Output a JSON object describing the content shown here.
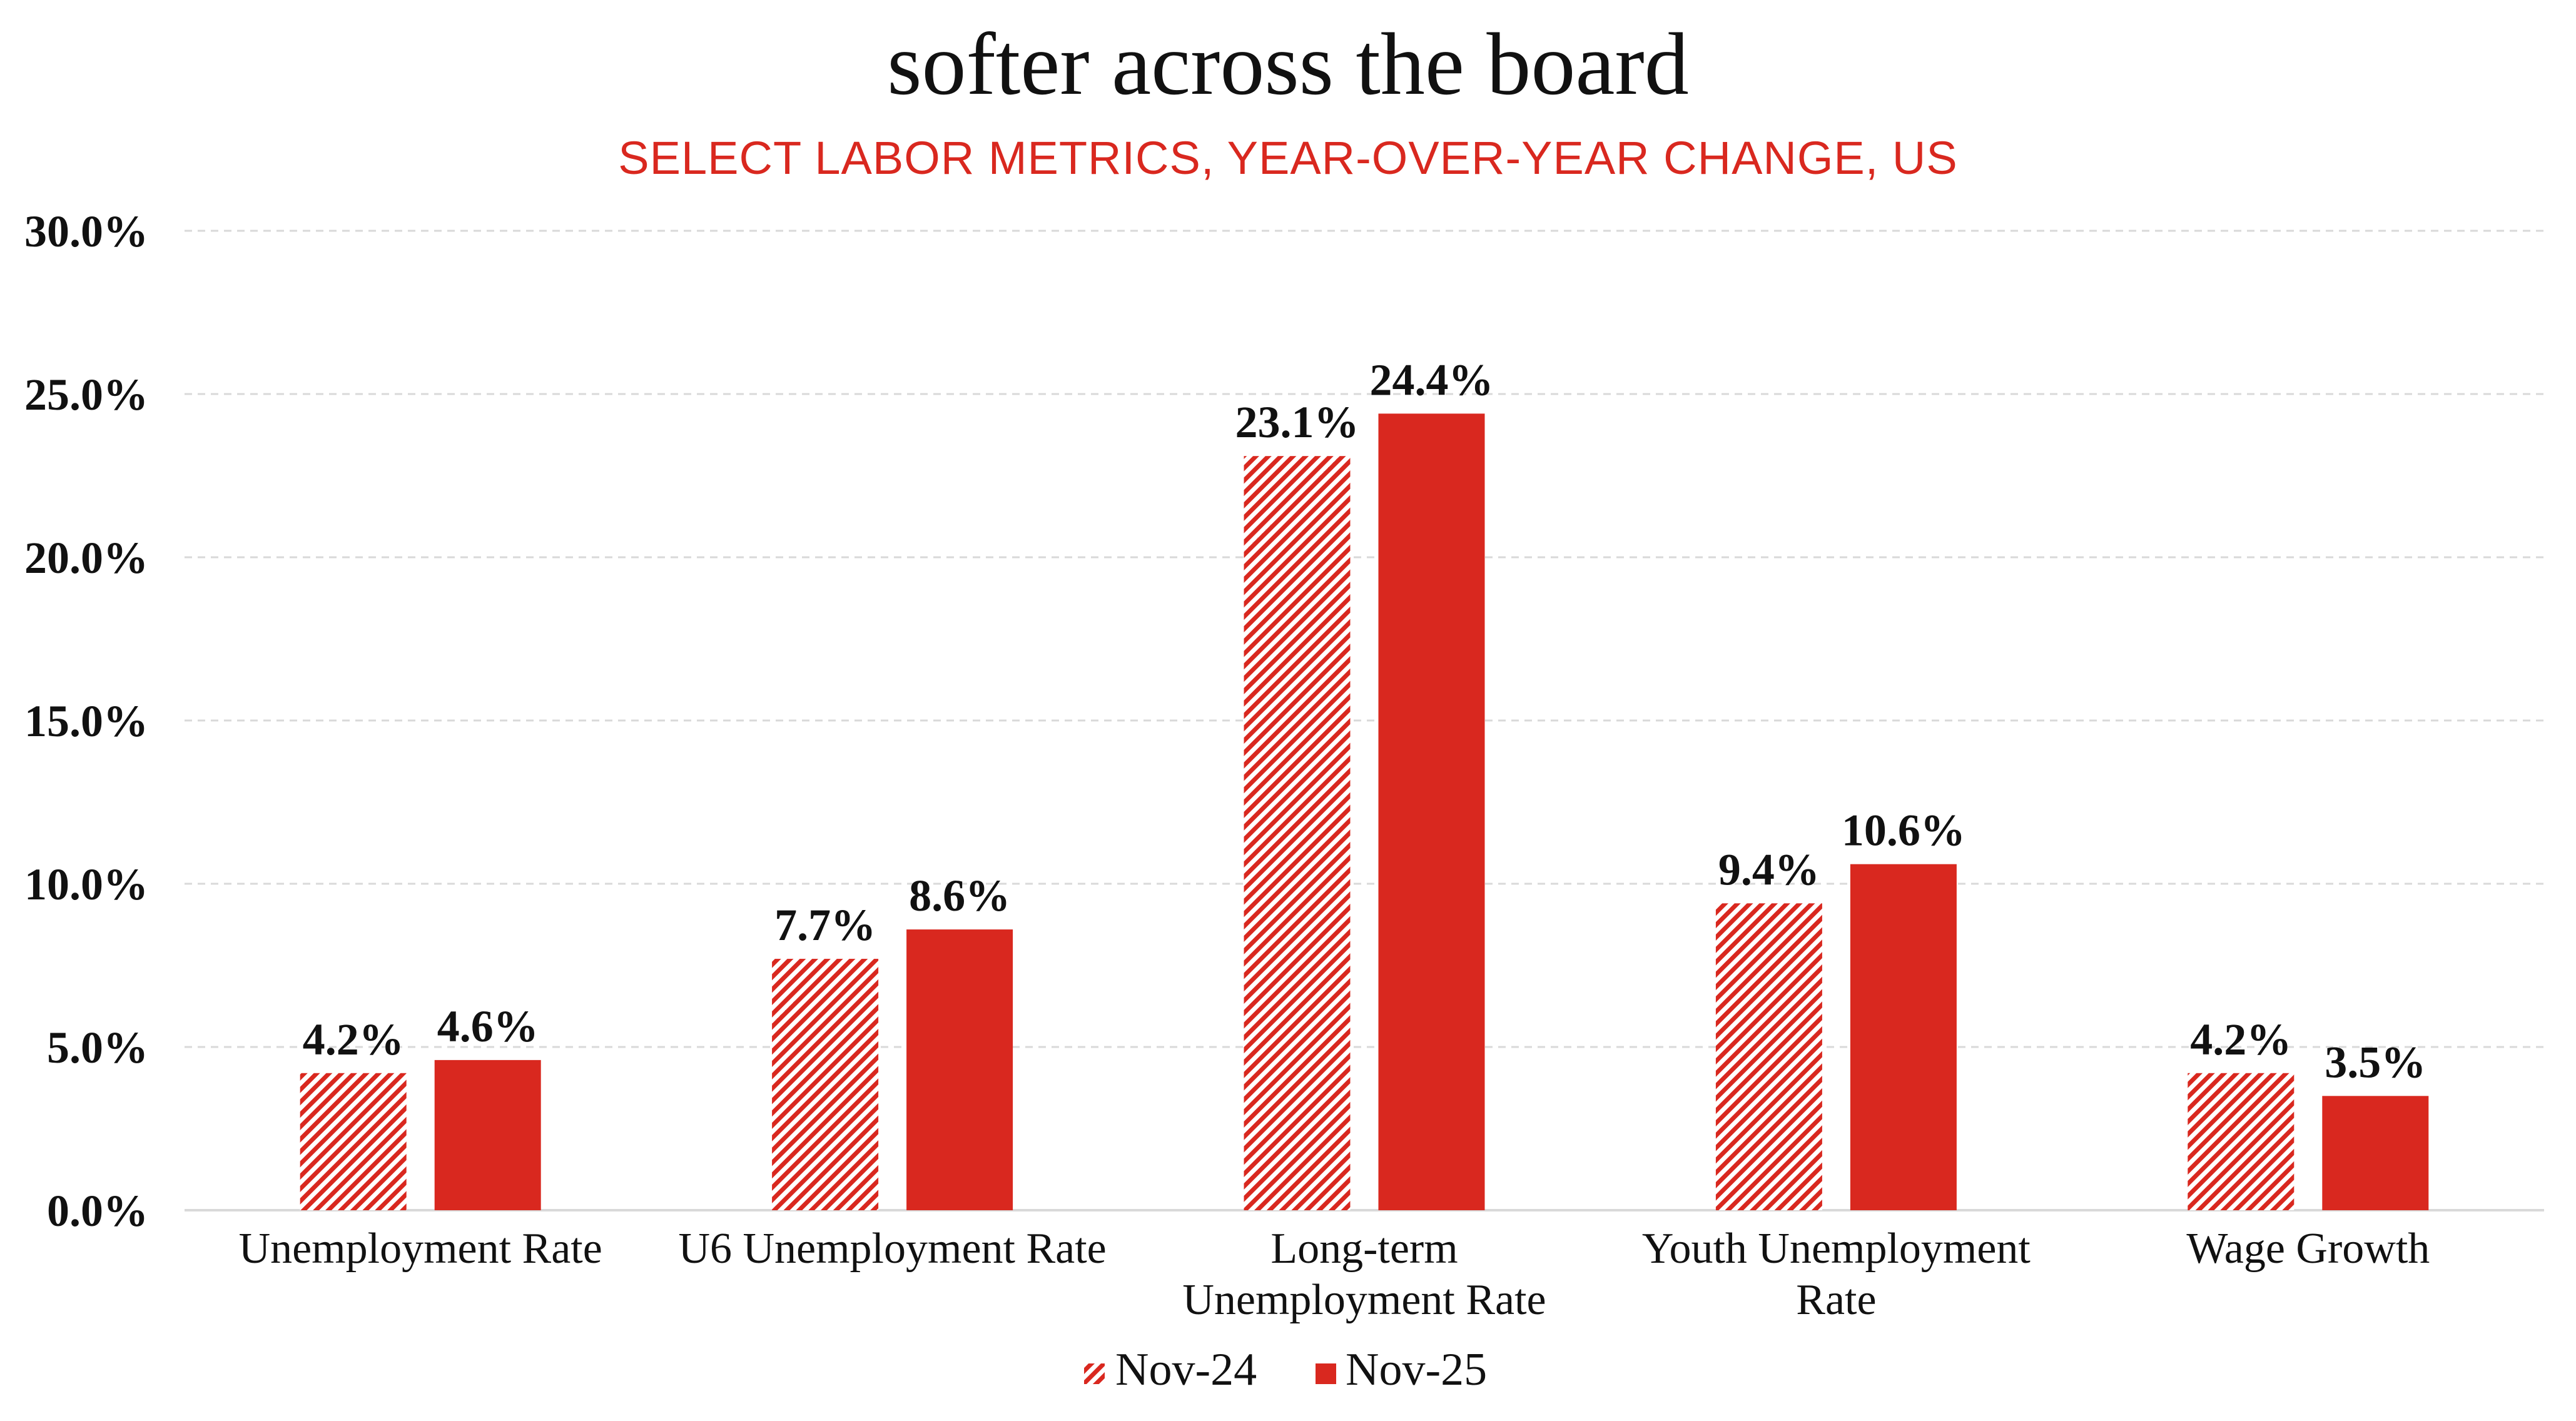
{
  "chart_data": {
    "type": "bar",
    "title": "softer across the board",
    "subtitle": "SELECT LABOR METRICS, YEAR-OVER-YEAR CHANGE, US",
    "xlabel": "",
    "ylabel": "",
    "categories": [
      [
        "Unemployment Rate"
      ],
      [
        "U6 Unemployment Rate"
      ],
      [
        "Long-term",
        "Unemployment Rate"
      ],
      [
        "Youth Unemployment",
        "Rate"
      ],
      [
        "Wage Growth"
      ]
    ],
    "series": [
      {
        "name": "Nov-24",
        "style": "hatched",
        "color": "#D9281F",
        "values": [
          4.2,
          7.7,
          23.1,
          9.4,
          4.2
        ],
        "labels": [
          "4.2%",
          "7.7%",
          "23.1%",
          "9.4%",
          "4.2%"
        ]
      },
      {
        "name": "Nov-25",
        "style": "solid",
        "color": "#D9281F",
        "values": [
          4.6,
          8.6,
          24.4,
          10.6,
          3.5
        ],
        "labels": [
          "4.6%",
          "8.6%",
          "24.4%",
          "10.6%",
          "3.5%"
        ]
      }
    ],
    "ylim": [
      0,
      30
    ],
    "yticks": [
      0,
      5,
      10,
      15,
      20,
      25,
      30
    ],
    "ytick_labels": [
      "0.0%",
      "5.0%",
      "10.0%",
      "15.0%",
      "20.0%",
      "25.0%",
      "30.0%"
    ],
    "grid": true,
    "grid_style": "dashed",
    "grid_color": "#D9D9D9",
    "axis_color": "#D9D9D9",
    "legend_position": "bottom-center",
    "legend": [
      "Nov-24",
      "Nov-25"
    ]
  }
}
